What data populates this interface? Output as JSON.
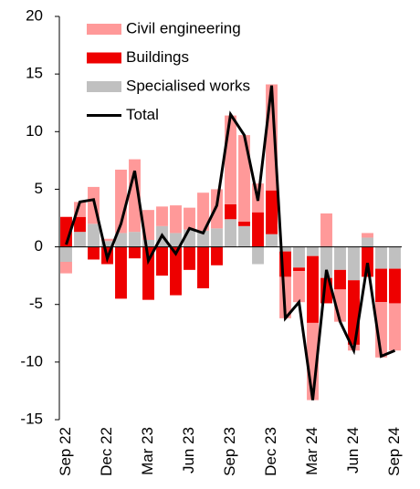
{
  "chart_data": {
    "type": "stacked_bar_line",
    "categories": [
      "Sep 22",
      null,
      null,
      "Dec 22",
      null,
      null,
      "Mar 23",
      null,
      null,
      "Jun 23",
      null,
      null,
      "Sep 23",
      null,
      null,
      "Dec 23",
      null,
      null,
      "Mar 24",
      null,
      null,
      "Jun 24",
      null,
      null,
      "Sep 24"
    ],
    "series": [
      {
        "name": "Civil engineering",
        "color": "#ff9999",
        "values": [
          -1.0,
          1.3,
          3.2,
          0.2,
          5.5,
          6.3,
          2.6,
          1.7,
          2.4,
          1.9,
          3.3,
          3.4,
          7.7,
          7.5,
          2.5,
          9.2,
          -3.6,
          -2.7,
          -6.7,
          2.9,
          -2.8,
          -0.5,
          0.4,
          -4.8,
          -4.1
        ]
      },
      {
        "name": "Buildings",
        "color": "#ee0000",
        "values": [
          2.6,
          1.3,
          -1.1,
          -1.5,
          -4.5,
          -1.0,
          -4.6,
          -2.5,
          -4.2,
          -2.0,
          -3.6,
          -1.6,
          1.3,
          0.4,
          3.0,
          3.8,
          -2.2,
          -0.3,
          -5.8,
          -2.2,
          -1.7,
          -5.6,
          -2.6,
          -2.9,
          -3.0
        ]
      },
      {
        "name": "Specialised works",
        "color": "#c0c0c0",
        "values": [
          -1.3,
          1.3,
          2.0,
          0.5,
          1.2,
          1.3,
          0.6,
          1.8,
          1.2,
          1.5,
          1.4,
          1.6,
          2.4,
          1.8,
          -1.5,
          1.1,
          -0.4,
          -1.8,
          -0.8,
          -2.7,
          -2.0,
          -2.9,
          0.8,
          -1.9,
          -1.9
        ]
      },
      {
        "name": "Total",
        "color": "#000000",
        "kind": "line",
        "values": [
          0.2,
          3.9,
          4.1,
          -1.0,
          2.0,
          6.6,
          -1.2,
          1.0,
          -0.6,
          1.6,
          1.2,
          3.6,
          11.5,
          9.7,
          4.0,
          14.0,
          -6.2,
          -4.8,
          -13.3,
          -2.0,
          -6.5,
          -9.0,
          -1.4,
          -9.5,
          -9.0
        ]
      }
    ],
    "ylim": [
      -15,
      20
    ],
    "yticks": [
      -15,
      -10,
      -5,
      0,
      5,
      10,
      15,
      20
    ],
    "legend": "upper left"
  }
}
